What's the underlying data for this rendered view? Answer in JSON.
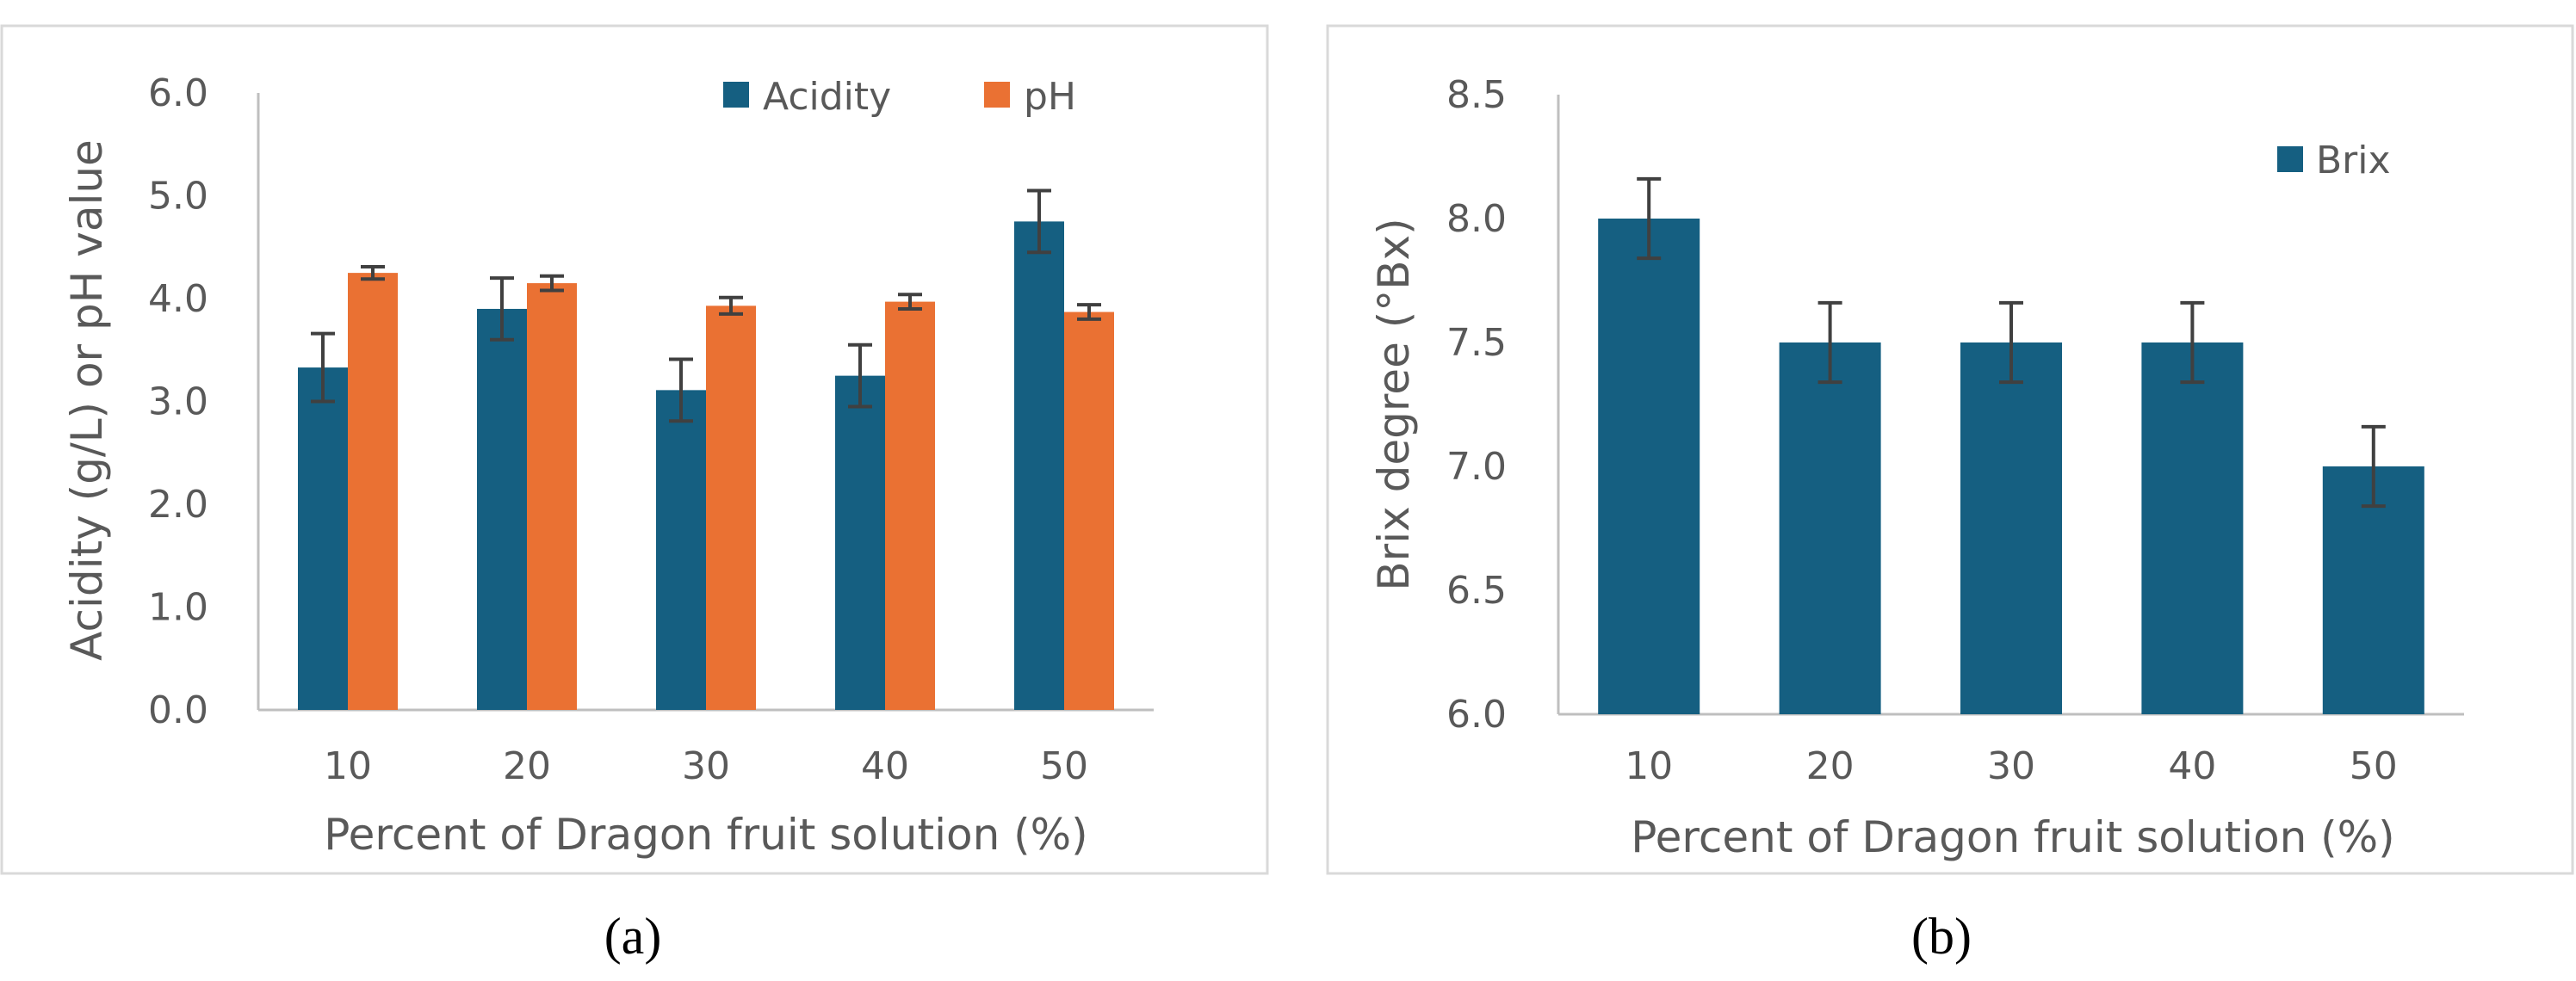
{
  "colors": {
    "acidity": "#155f81",
    "ph": "#ea7133",
    "brix": "#155f81",
    "axis": "#bfbfbf",
    "error": "#404040",
    "frame": "#d9d9d9"
  },
  "chart_data": [
    {
      "type": "bar",
      "panel_label": "(a)",
      "categories": [
        "10",
        "20",
        "30",
        "40",
        "50"
      ],
      "series": [
        {
          "name": "Acidity",
          "values": [
            3.33,
            3.9,
            3.11,
            3.25,
            4.75
          ],
          "errors": [
            0.33,
            0.3,
            0.3,
            0.3,
            0.3
          ]
        },
        {
          "name": "pH",
          "values": [
            4.25,
            4.15,
            3.93,
            3.97,
            3.87
          ],
          "errors": [
            0.06,
            0.07,
            0.08,
            0.07,
            0.07
          ]
        }
      ],
      "xlabel": "Percent of Dragon fruit solution (%)",
      "ylabel": "Acidity (g/L) or pH value",
      "ylim": [
        0,
        6
      ],
      "yticks": [
        "0.0",
        "1.0",
        "2.0",
        "3.0",
        "4.0",
        "5.0",
        "6.0"
      ],
      "legend_position": "top-right"
    },
    {
      "type": "bar",
      "panel_label": "(b)",
      "categories": [
        "10",
        "20",
        "30",
        "40",
        "50"
      ],
      "series": [
        {
          "name": "Brix",
          "values": [
            8.0,
            7.5,
            7.5,
            7.5,
            7.0
          ],
          "errors": [
            0.16,
            0.16,
            0.16,
            0.16,
            0.16
          ]
        }
      ],
      "xlabel": "Percent of Dragon fruit solution (%)",
      "ylabel": "Brix degree (°Bx)",
      "ylim": [
        6,
        8.5
      ],
      "yticks": [
        "6.0",
        "6.5",
        "7.0",
        "7.5",
        "8.0",
        "8.5"
      ],
      "legend_position": "top-right"
    }
  ]
}
